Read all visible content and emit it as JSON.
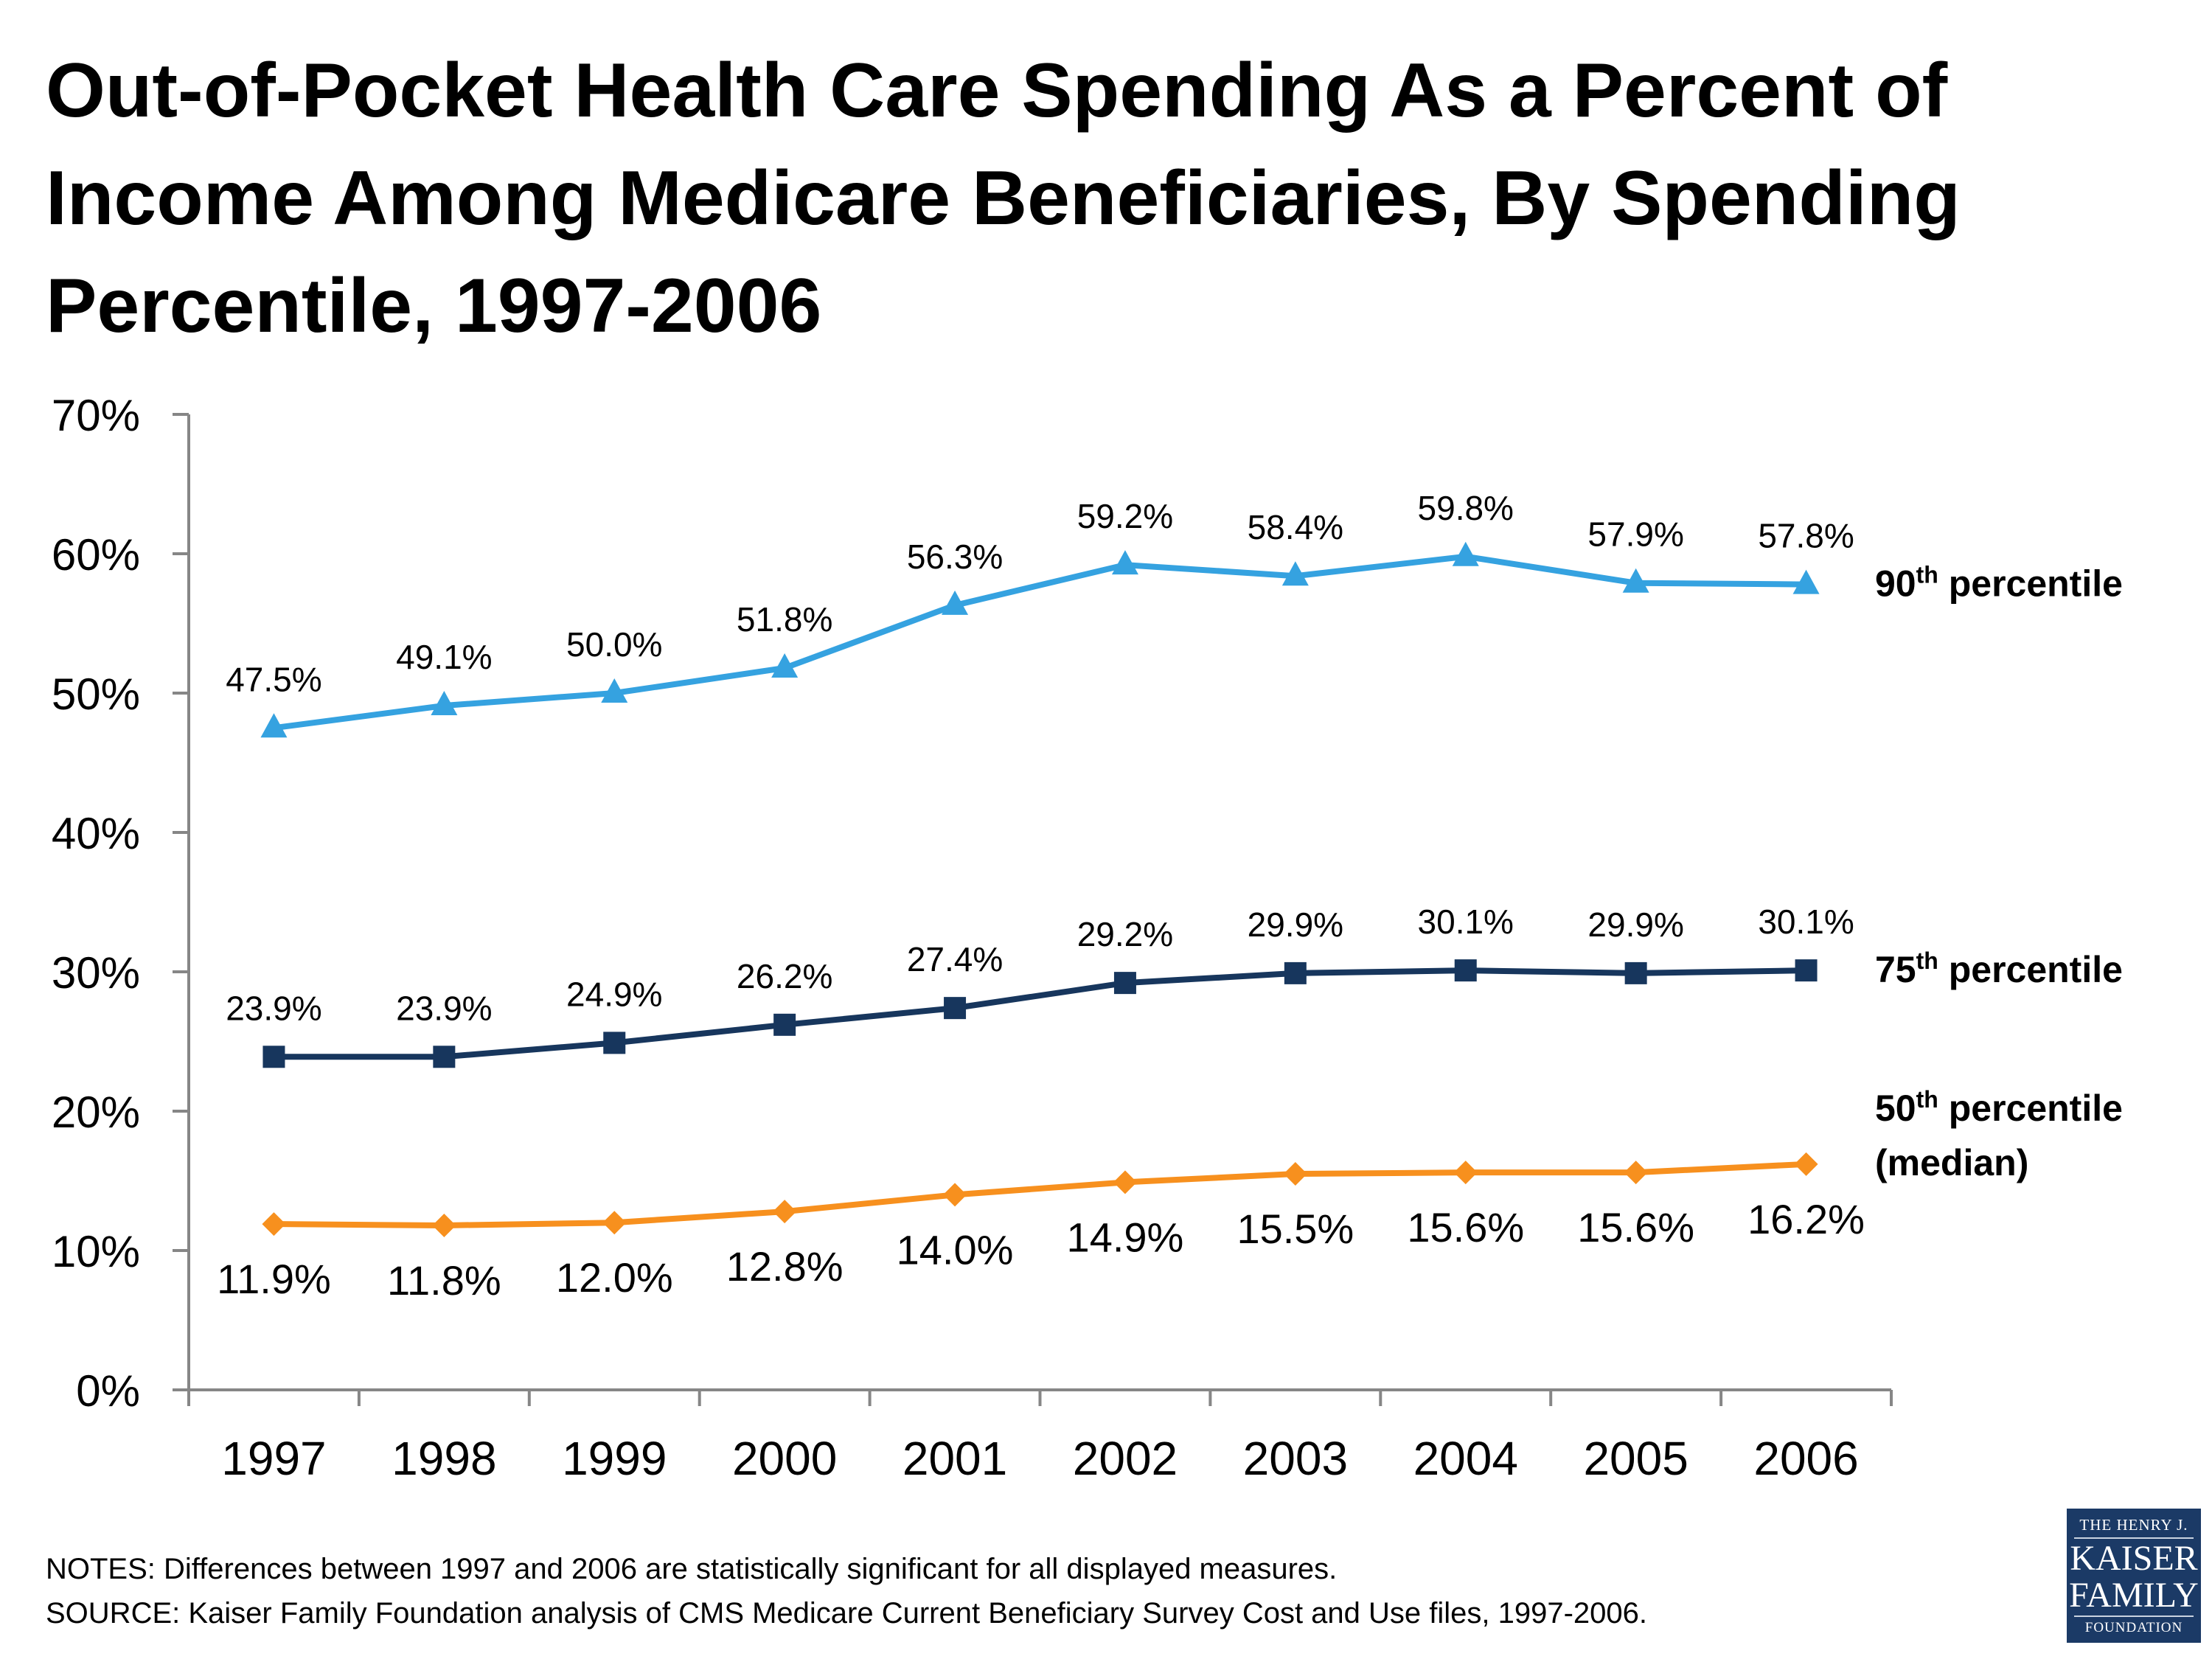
{
  "chart_data": {
    "type": "line",
    "title": "Out-of-Pocket Health Care Spending As a Percent of Income Among Medicare Beneficiaries, By Spending Percentile, 1997-2006",
    "categories": [
      "1997",
      "1998",
      "1999",
      "2000",
      "2001",
      "2002",
      "2003",
      "2004",
      "2005",
      "2006"
    ],
    "ylim": [
      0,
      70
    ],
    "yticks": [
      "0%",
      "10%",
      "20%",
      "30%",
      "40%",
      "50%",
      "60%",
      "70%"
    ],
    "grid": false,
    "legend": "right, inline labels at line ends",
    "series": [
      {
        "name": "90th percentile",
        "name_parts": {
          "num": "90",
          "sup": "th",
          "rest": " percentile",
          "line2": ""
        },
        "color": "#35a2e0",
        "marker": "triangle",
        "label_position": "above",
        "values": [
          47.5,
          49.1,
          50.0,
          51.8,
          56.3,
          59.2,
          58.4,
          59.8,
          57.9,
          57.8
        ],
        "labels": [
          "47.5%",
          "49.1%",
          "50.0%",
          "51.8%",
          "56.3%",
          "59.2%",
          "58.4%",
          "59.8%",
          "57.9%",
          "57.8%"
        ]
      },
      {
        "name": "75th percentile",
        "name_parts": {
          "num": "75",
          "sup": "th",
          "rest": " percentile",
          "line2": ""
        },
        "color": "#17365d",
        "marker": "square",
        "label_position": "above",
        "values": [
          23.9,
          23.9,
          24.9,
          26.2,
          27.4,
          29.2,
          29.9,
          30.1,
          29.9,
          30.1
        ],
        "labels": [
          "23.9%",
          "23.9%",
          "24.9%",
          "26.2%",
          "27.4%",
          "29.2%",
          "29.9%",
          "30.1%",
          "29.9%",
          "30.1%"
        ]
      },
      {
        "name": "50th percentile (median)",
        "name_parts": {
          "num": "50",
          "sup": "th",
          "rest": " percentile",
          "line2": "(median)"
        },
        "color": "#f7901e",
        "marker": "diamond",
        "label_position": "below",
        "values": [
          11.9,
          11.8,
          12.0,
          12.8,
          14.0,
          14.9,
          15.5,
          15.6,
          15.6,
          16.2
        ],
        "labels": [
          "11.9%",
          "11.8%",
          "12.0%",
          "12.8%",
          "14.0%",
          "14.9%",
          "15.5%",
          "15.6%",
          "15.6%",
          "16.2%"
        ]
      }
    ]
  },
  "notes": "NOTES: Differences between 1997 and 2006 are statistically significant for all displayed measures.",
  "source": "SOURCE: Kaiser Family Foundation analysis of CMS Medicare Current Beneficiary Survey Cost and Use files, 1997-2006.",
  "logo": {
    "line1": "THE HENRY J.",
    "line2": "KAISER",
    "line3": "FAMILY",
    "line4": "FOUNDATION"
  }
}
